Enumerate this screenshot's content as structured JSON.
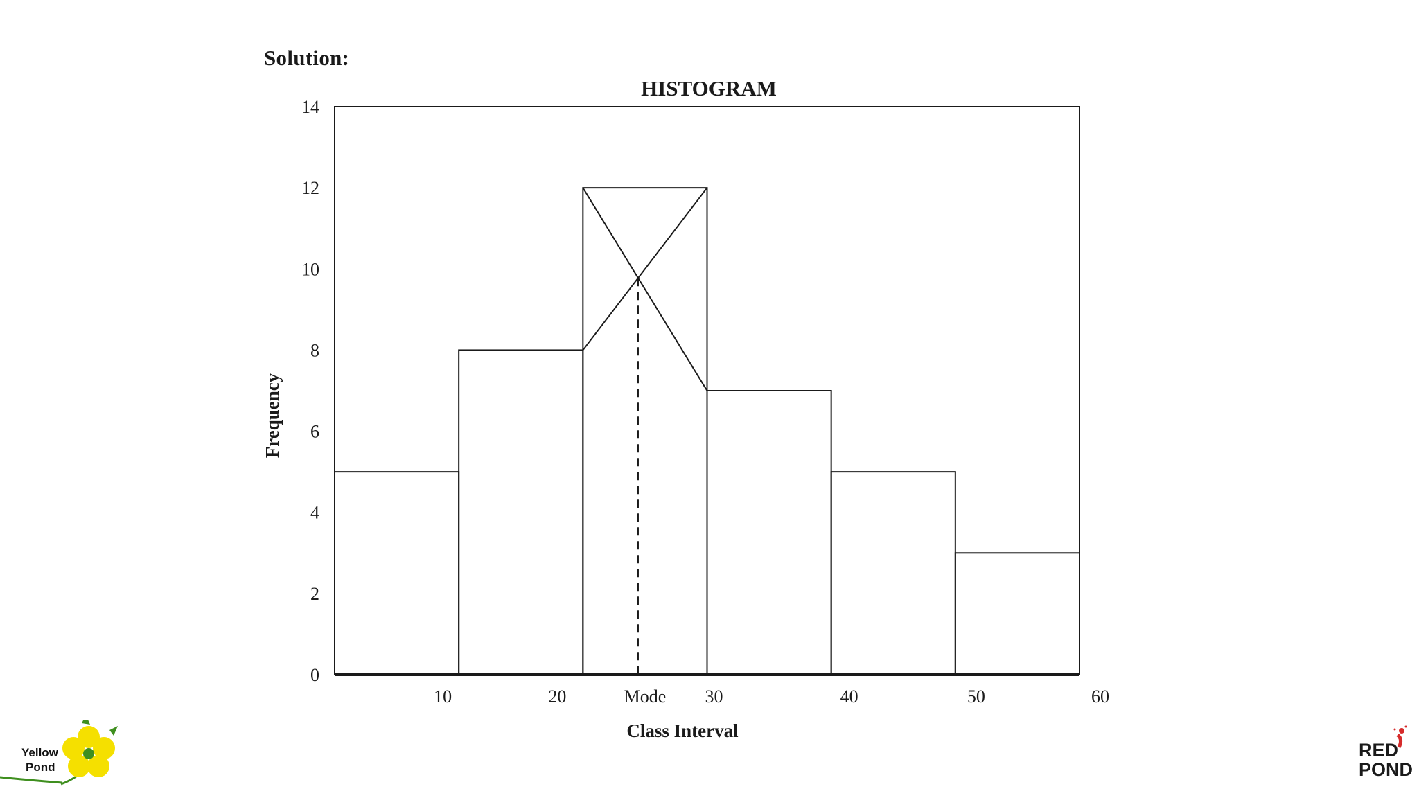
{
  "page": {
    "heading": "Solution:"
  },
  "chart_data": {
    "type": "bar",
    "title": "HISTOGRAM",
    "xlabel": "Class Interval",
    "ylabel": "Frequency",
    "bins": [
      {
        "start": 0,
        "end": 10,
        "value": 5
      },
      {
        "start": 10,
        "end": 20,
        "value": 8
      },
      {
        "start": 20,
        "end": 30,
        "value": 12
      },
      {
        "start": 30,
        "end": 40,
        "value": 7
      },
      {
        "start": 40,
        "end": 50,
        "value": 5
      },
      {
        "start": 50,
        "end": 60,
        "value": 3
      }
    ],
    "xlim": [
      0,
      60
    ],
    "ylim": [
      0,
      14
    ],
    "y_ticks": [
      0,
      2,
      4,
      6,
      8,
      10,
      12,
      14
    ],
    "x_ticks": [
      10,
      20,
      30,
      40,
      50,
      60
    ],
    "mode_annotation": {
      "label": "Mode",
      "value": 24.44
    },
    "grid": false
  },
  "logos": {
    "left": {
      "line1": "Yellow",
      "line2": "Pond"
    },
    "right": {
      "line1": "RED",
      "line2": "POND"
    }
  },
  "colors": {
    "yellow": "#f5e000",
    "green": "#3f8f1f",
    "red": "#d62b2b",
    "dark": "#1a1a1a"
  }
}
